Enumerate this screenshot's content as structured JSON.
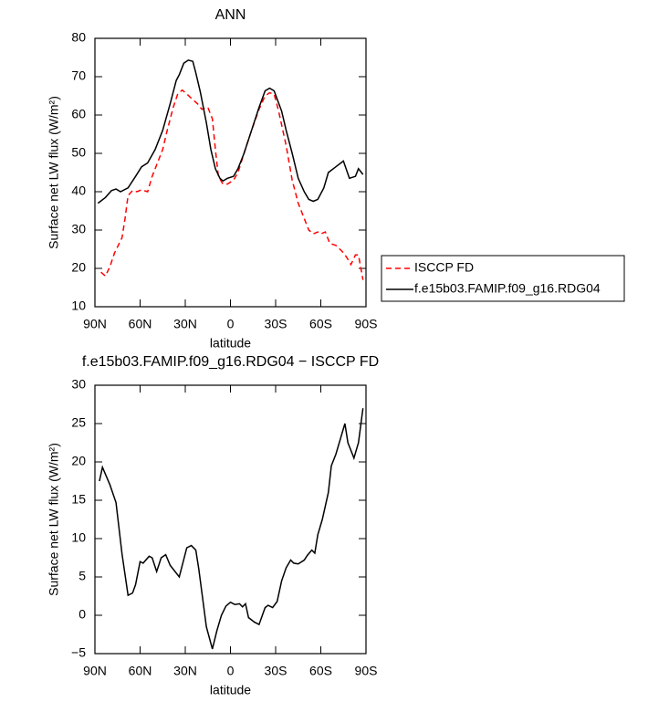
{
  "chart_data": [
    {
      "type": "line",
      "title": "ANN",
      "xlabel": "latitude",
      "ylabel": "Surface net LW flux (W/m²)",
      "xlim": [
        90,
        -90
      ],
      "xticks": [
        {
          "value": 90,
          "label": "90N"
        },
        {
          "value": 60,
          "label": "60N"
        },
        {
          "value": 30,
          "label": "30N"
        },
        0,
        {
          "value": -30,
          "label": "30S"
        },
        {
          "value": -60,
          "label": "60S"
        },
        {
          "value": -90,
          "label": "90S"
        }
      ],
      "ylim": [
        10,
        80
      ],
      "yticks": [
        10,
        20,
        30,
        40,
        50,
        60,
        70,
        80
      ],
      "legend": "right",
      "series": [
        {
          "name": "ISCCP FD",
          "color": "#ff0000",
          "style": "dashed",
          "x": [
            86,
            83,
            80,
            77,
            72,
            70,
            68,
            65,
            62,
            59,
            55,
            52,
            49,
            45,
            42,
            38,
            35,
            32,
            29,
            25,
            22,
            19,
            15,
            12,
            10,
            8,
            5,
            2,
            -2,
            -5,
            -9,
            -14,
            -19,
            -23,
            -26,
            -29,
            -32,
            -37,
            -41,
            -45,
            -49,
            -52,
            -55,
            -58,
            -60,
            -63,
            -66,
            -70,
            -74,
            -77,
            -80,
            -83,
            -85,
            -88
          ],
          "values": [
            19,
            18,
            20.5,
            24,
            28,
            33,
            39,
            40.3,
            40,
            40.5,
            40,
            44,
            47,
            51,
            56,
            62,
            65.5,
            66.5,
            65.5,
            64,
            63,
            61.5,
            62,
            59,
            51,
            44,
            42,
            42,
            43,
            45,
            50,
            56,
            61.5,
            65,
            65.8,
            65.5,
            61,
            52,
            43,
            37,
            33,
            30,
            29,
            29.5,
            29,
            29.5,
            26.5,
            26,
            24.5,
            23,
            21,
            23.5,
            23.5,
            17
          ]
        },
        {
          "name": "f.e15b03.FAMIP.f09_g16.RDG04",
          "color": "#000000",
          "style": "solid",
          "x": [
            88,
            83,
            79,
            76,
            73,
            68,
            63,
            59,
            55,
            50,
            45,
            40,
            36,
            34,
            31,
            28,
            25,
            23,
            20,
            16,
            13,
            10,
            7,
            5,
            2,
            -2,
            -5,
            -9,
            -14,
            -19,
            -23,
            -26,
            -29,
            -34,
            -37,
            -41,
            -45,
            -49,
            -52,
            -55,
            -58,
            -62,
            -65,
            -70,
            -75,
            -79,
            -83,
            -85,
            -88
          ],
          "values": [
            37,
            38.5,
            40.3,
            40.7,
            40,
            41,
            44,
            46.5,
            47.5,
            51,
            56,
            63,
            69,
            70.5,
            73.5,
            74.3,
            74,
            71,
            66,
            58,
            51,
            46,
            43.5,
            42.8,
            43.5,
            44,
            46,
            50,
            56,
            62,
            66.3,
            67,
            66.3,
            61,
            56,
            50,
            43.5,
            40,
            38,
            37.5,
            38,
            41,
            45,
            46.5,
            48,
            43.5,
            44,
            46,
            44.5
          ]
        }
      ]
    },
    {
      "type": "line",
      "title": "f.e15b03.FAMIP.f09_g16.RDG04 − ISCCP FD",
      "xlabel": "latitude",
      "ylabel": "Surface net LW flux (W/m²)",
      "xlim": [
        90,
        -90
      ],
      "xticks": [
        {
          "value": 90,
          "label": "90N"
        },
        {
          "value": 60,
          "label": "60N"
        },
        {
          "value": 30,
          "label": "30N"
        },
        0,
        {
          "value": -30,
          "label": "30S"
        },
        {
          "value": -60,
          "label": "60S"
        },
        {
          "value": -90,
          "label": "90S"
        }
      ],
      "ylim": [
        -5,
        30
      ],
      "yticks": [
        {
          "value": -5,
          "label": "−5"
        },
        0,
        5,
        10,
        15,
        20,
        25,
        30
      ],
      "series": [
        {
          "color": "#000000",
          "style": "solid",
          "x": [
            87,
            85,
            80,
            76,
            72,
            68,
            65,
            63,
            60,
            58,
            54,
            52,
            49,
            46,
            43,
            40,
            34,
            29,
            26,
            23,
            21,
            19,
            16,
            12,
            9,
            6,
            3,
            0,
            -3,
            -6,
            -8,
            -10,
            -12,
            -16,
            -19,
            -23,
            -25,
            -28,
            -31,
            -34,
            -37,
            -40,
            -42,
            -45,
            -49,
            -51,
            -54,
            -56,
            -58,
            -61,
            -65,
            -67,
            -70,
            -73,
            -76,
            -78,
            -82,
            -85,
            -88
          ],
          "values": [
            17.5,
            19.3,
            17,
            14.7,
            8,
            2.6,
            2.9,
            4,
            7,
            6.8,
            7.7,
            7.5,
            5.7,
            7.5,
            7.9,
            6.5,
            5,
            8.8,
            9.1,
            8.5,
            6,
            3,
            -1.5,
            -4.4,
            -2,
            0,
            1.2,
            1.7,
            1.4,
            1.5,
            1.1,
            1.5,
            -0.3,
            -0.9,
            -1.2,
            1,
            1.3,
            1,
            1.8,
            4.5,
            6.2,
            7.2,
            6.8,
            6.7,
            7.2,
            7.8,
            8.5,
            8.1,
            10.5,
            12.5,
            16,
            19.5,
            21,
            23,
            25,
            22.5,
            20.5,
            22.5,
            27
          ]
        }
      ]
    }
  ]
}
